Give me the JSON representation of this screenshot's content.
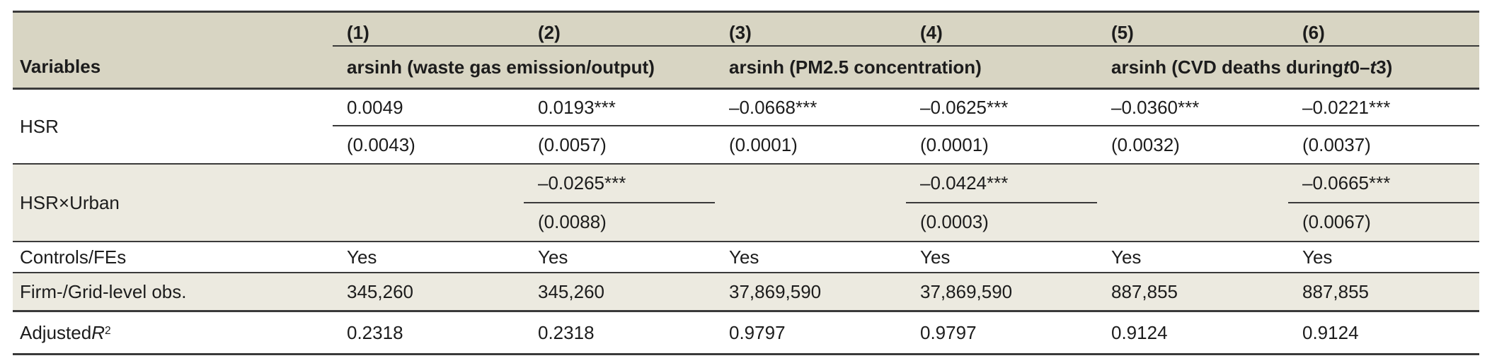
{
  "colors": {
    "header_bg": "#d8d5c3",
    "stripe_bg": "#eceae0",
    "rule": "#3a3a3a",
    "text": "#1c1c1c"
  },
  "table": {
    "header": {
      "variables_label": "Variables",
      "column_numbers": [
        "(1)",
        "(2)",
        "(3)",
        "(4)",
        "(5)",
        "(6)"
      ],
      "groups": [
        {
          "label": "arsinh (waste gas emission/output)"
        },
        {
          "label": "arsinh (PM2.5 concentration)"
        },
        {
          "label_runs": [
            {
              "t": "arsinh (CVD deaths during "
            },
            {
              "t": "t",
              "i": true
            },
            {
              "t": "0–"
            },
            {
              "t": "t",
              "i": true
            },
            {
              "t": "3)"
            }
          ]
        }
      ]
    },
    "rows": {
      "hsr": {
        "label": "HSR",
        "coefs": [
          "0.0049",
          "0.0193***",
          "–0.0668***",
          "–0.0625***",
          "–0.0360***",
          "–0.0221***"
        ],
        "ses": [
          "(0.0043)",
          "(0.0057)",
          "(0.0001)",
          "(0.0001)",
          "(0.0032)",
          "(0.0037)"
        ]
      },
      "hsr_urban": {
        "label": "HSR×Urban",
        "coefs": [
          "",
          "–0.0265***",
          "",
          "–0.0424***",
          "",
          "–0.0665***"
        ],
        "ses": [
          "",
          "(0.0088)",
          "",
          "(0.0003)",
          "",
          "(0.0067)"
        ]
      },
      "controls": {
        "label": "Controls/FEs",
        "values": [
          "Yes",
          "Yes",
          "Yes",
          "Yes",
          "Yes",
          "Yes"
        ]
      },
      "obs": {
        "label": "Firm-/Grid-level obs.",
        "values": [
          "345,260",
          "345,260",
          "37,869,590",
          "37,869,590",
          "887,855",
          "887,855"
        ]
      },
      "adj_r2": {
        "label_runs": [
          {
            "t": "Adjusted "
          },
          {
            "t": "R",
            "i": true
          },
          {
            "t": "2",
            "sup": true
          }
        ],
        "values": [
          "0.2318",
          "0.2318",
          "0.9797",
          "0.9797",
          "0.9124",
          "0.9124"
        ]
      }
    }
  }
}
